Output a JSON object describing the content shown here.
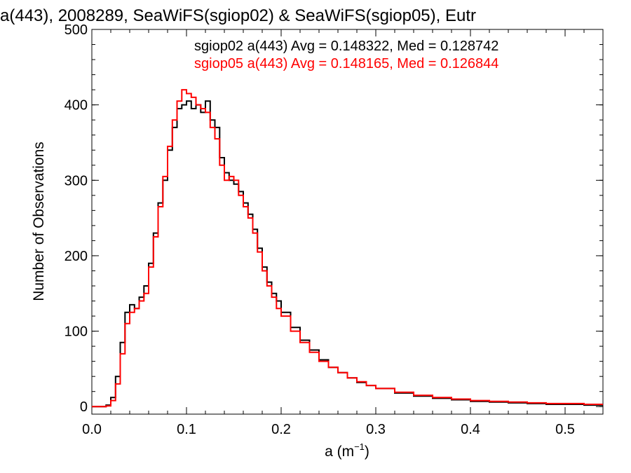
{
  "chart_data": {
    "type": "line",
    "title": "a(443), 2008289, SeaWiFS(sgiop02) & SeaWiFS(sgiop05), Eutr",
    "xlabel_main": "a (m",
    "xlabel_sup": "−1",
    "xlabel_close": ")",
    "ylabel": "Number of Observations",
    "xlim": [
      0.0,
      0.54
    ],
    "ylim": [
      -10,
      500
    ],
    "xticks": [
      "0.0",
      "0.1",
      "0.2",
      "0.3",
      "0.4",
      "0.5"
    ],
    "yticks": [
      "0",
      "100",
      "200",
      "300",
      "400",
      "500"
    ],
    "legend": [
      {
        "text": "sgiop02 a(443) Avg = 0.148322, Med = 0.128742",
        "color": "#000000"
      },
      {
        "text": "sgiop05 a(443) Avg = 0.148165, Med = 0.126844",
        "color": "#ff0000"
      }
    ],
    "series": [
      {
        "name": "sgiop02",
        "color": "#000000",
        "x": [
          0.0,
          0.01,
          0.015,
          0.02,
          0.025,
          0.03,
          0.035,
          0.04,
          0.045,
          0.05,
          0.055,
          0.06,
          0.065,
          0.07,
          0.075,
          0.08,
          0.085,
          0.09,
          0.095,
          0.1,
          0.105,
          0.11,
          0.115,
          0.12,
          0.125,
          0.13,
          0.135,
          0.14,
          0.145,
          0.15,
          0.155,
          0.16,
          0.165,
          0.17,
          0.175,
          0.18,
          0.185,
          0.19,
          0.195,
          0.2,
          0.21,
          0.22,
          0.23,
          0.24,
          0.25,
          0.26,
          0.27,
          0.28,
          0.29,
          0.3,
          0.32,
          0.34,
          0.36,
          0.38,
          0.4,
          0.42,
          0.44,
          0.46,
          0.48,
          0.5,
          0.52,
          0.54
        ],
        "y": [
          0,
          0,
          2,
          12,
          40,
          85,
          125,
          135,
          130,
          145,
          160,
          190,
          230,
          270,
          300,
          340,
          370,
          395,
          400,
          405,
          395,
          400,
          390,
          405,
          380,
          370,
          330,
          310,
          300,
          295,
          285,
          270,
          255,
          235,
          210,
          185,
          165,
          150,
          140,
          125,
          105,
          88,
          75,
          62,
          52,
          45,
          38,
          32,
          28,
          24,
          18,
          14,
          11,
          9,
          7,
          6,
          5,
          4,
          3,
          3,
          2,
          2
        ]
      },
      {
        "name": "sgiop05",
        "color": "#ff0000",
        "x": [
          0.0,
          0.01,
          0.015,
          0.02,
          0.025,
          0.03,
          0.035,
          0.04,
          0.045,
          0.05,
          0.055,
          0.06,
          0.065,
          0.07,
          0.075,
          0.08,
          0.085,
          0.09,
          0.095,
          0.1,
          0.105,
          0.11,
          0.115,
          0.12,
          0.125,
          0.13,
          0.135,
          0.14,
          0.145,
          0.15,
          0.155,
          0.16,
          0.165,
          0.17,
          0.175,
          0.18,
          0.185,
          0.19,
          0.195,
          0.2,
          0.21,
          0.22,
          0.23,
          0.24,
          0.25,
          0.26,
          0.27,
          0.28,
          0.29,
          0.3,
          0.32,
          0.34,
          0.36,
          0.38,
          0.4,
          0.42,
          0.44,
          0.46,
          0.48,
          0.5,
          0.52,
          0.54
        ],
        "y": [
          0,
          0,
          1,
          8,
          30,
          70,
          110,
          125,
          130,
          140,
          150,
          185,
          225,
          265,
          305,
          345,
          380,
          405,
          420,
          415,
          410,
          400,
          395,
          390,
          370,
          355,
          320,
          300,
          305,
          300,
          280,
          265,
          250,
          230,
          205,
          180,
          160,
          145,
          130,
          120,
          100,
          85,
          72,
          60,
          52,
          45,
          38,
          33,
          28,
          24,
          19,
          15,
          12,
          10,
          8,
          7,
          6,
          5,
          4,
          4,
          3,
          3
        ]
      }
    ]
  }
}
